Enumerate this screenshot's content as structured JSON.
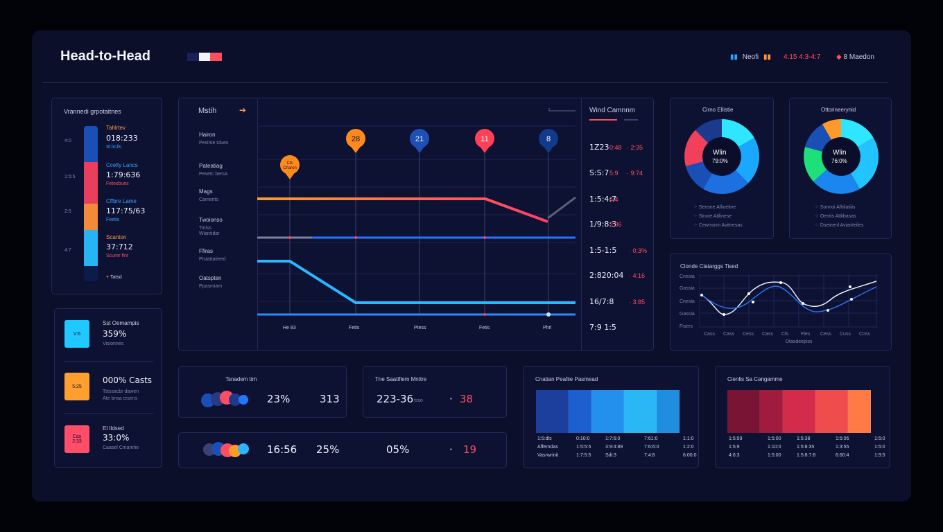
{
  "header": {
    "title": "Head-to-Head",
    "mid_label": "Neofi",
    "score": "4:15 4:3-4:7",
    "user": "8 Maedon"
  },
  "left_panel": {
    "title": "Vrannedi grpotaitnes",
    "axis_ticks": [
      "4:0",
      "1:5:5",
      "2:5",
      "4:7"
    ],
    "entries": [
      {
        "label": "Tahlrtev",
        "value": "018:233",
        "sub": "Sl:irclis"
      },
      {
        "label": "Ccelty Lancs",
        "value": "1:79:636",
        "sub": "Fetesbues"
      },
      {
        "label": "Cffbre Lame",
        "value": "117:75/63",
        "sub": "Feetis"
      },
      {
        "label": "Scanton",
        "value": "37:712",
        "sub": "Scurer fint"
      }
    ],
    "footer": "+ Tatsd"
  },
  "stats_panel": {
    "items": [
      {
        "tile": "V:6",
        "label": "Sst Oemampis",
        "value": "359%",
        "sub": "Visionnes",
        "color": "#1fc8ff"
      },
      {
        "tile": "5:25",
        "label": "000% Casts",
        "value": "",
        "sub": "Tstssacbr dawen\nAte bnsa crsens",
        "color": "#ffa02e"
      },
      {
        "tile": "Cas\n2:33",
        "label": "El Ildsed",
        "value": "33:0%",
        "sub": "Caasel Cmamhe",
        "color": "#ff4d6a"
      }
    ]
  },
  "match_panel": {
    "title": "Mstih",
    "rows": [
      {
        "label": "Hairon",
        "sub": "Pesinte tdues"
      },
      {
        "label": "Pateatiag",
        "sub": "Pesetc bersa"
      },
      {
        "label": "Mags",
        "sub": "Camerits"
      },
      {
        "label": "Twoionso",
        "sub": "Tiniss\nWiantidar"
      },
      {
        "label": "Ffiras",
        "sub": "Pistattatieed"
      },
      {
        "label": "Oatspten",
        "sub": "Ppasmiam"
      }
    ],
    "x_labels": [
      "He 83",
      "Fetis",
      "Ptess",
      "Fetis",
      "Phrl"
    ],
    "markers": [
      {
        "label": "Ctc\nCharon",
        "color": "#ff8a1c"
      },
      {
        "label": "28",
        "color": "#ff8a1c"
      },
      {
        "label": "21",
        "color": "#1e4fb5"
      },
      {
        "label": "11",
        "color": "#ff4057"
      },
      {
        "label": "8",
        "color": "#123a8c"
      }
    ]
  },
  "wind_panel": {
    "title": "Wind Camnnm",
    "rows": [
      {
        "a": "1Z23",
        "b": "0:48",
        "c": "· 2:35"
      },
      {
        "a": "S:S:7",
        "b": "5:9",
        "c": "· 9:74"
      },
      {
        "a": "1:5:4:7",
        "b": "4:4",
        "c": ""
      },
      {
        "a": "1/9:8:3",
        "b": "2:36",
        "c": ""
      },
      {
        "a": "1:5-1:5",
        "b": "· 0:3%",
        "c": ""
      },
      {
        "a": "2:820:04",
        "b": "· 4:16",
        "c": ""
      },
      {
        "a": "16/7:8",
        "b": "· 3:85",
        "c": ""
      },
      {
        "a": "7:9 1:5",
        "b": "",
        "c": ""
      }
    ]
  },
  "donut1": {
    "title": "Cirno Ellistie",
    "center": "Wlin",
    "center_value": "79:0%",
    "legend": [
      "Sensne Alliuetive",
      "Sinoie Atilinese",
      "Cewnsnm Avitnesas"
    ]
  },
  "donut2": {
    "title": "Ottorineerynid",
    "center": "Wlin",
    "center_value": "76:0%",
    "legend": [
      "Sonnoi Alhilatiiis",
      "Oentis Atliibasas",
      "Dseinenl Avianteiles"
    ]
  },
  "trend": {
    "title": "Clonde Clatarggs Tised",
    "y_labels": [
      "Cnesia",
      "Gassia",
      "Cnesia",
      "Gassia",
      "Fisers"
    ],
    "x_labels": [
      "Cass",
      "Cass",
      "Cess",
      "Cass",
      "Cls",
      "Fles",
      "Cess",
      "Cuss",
      "Coss"
    ],
    "x_caption": "Dtasdeepiss"
  },
  "bottom": {
    "c1": {
      "title": "Tsnadem tim",
      "v1": "23%",
      "v2": "313"
    },
    "c2": {
      "title": "Tne Saatiflem Mnttre",
      "v1": "223-36",
      "unit": "tsso",
      "v2": "38"
    },
    "c3": {
      "v1": "16:56",
      "v2": "25%",
      "v3": "05%",
      "v4": "19"
    }
  },
  "heat_blue": {
    "title": "Cnatian Peafiie Pasmead",
    "rows": [
      [
        "1:5:dls",
        "0:10:0",
        "1:7:6:0",
        "7:61:0",
        "1:1:0"
      ],
      [
        "Afferndas",
        "1:5:5:5",
        "3:9:4:89",
        "7:6:6:0",
        "1:2:0"
      ],
      [
        "Vasrwrinit",
        "1:7:5:5",
        "Sdi:3",
        "7:4:8",
        "6:00:0"
      ]
    ],
    "colors": [
      "#1c3f9e",
      "#1e5fcf",
      "#2490ee",
      "#2bb7f5",
      "#1f8de0"
    ]
  },
  "heat_red": {
    "title": "Cienlis Sa Cangamme",
    "rows": [
      [
        "1:5:99",
        "1:5:00",
        "1:5:38",
        "1:5:06",
        "1:5:0"
      ],
      [
        "1:5:9",
        "1:10:0",
        "1:5:8:35",
        "1:3:55",
        "1:5:0"
      ],
      [
        "4:6:3",
        "1:5:00",
        "1:5:8:7:8",
        "6:60:4",
        "1:9:5"
      ]
    ],
    "colors": [
      "#7a1434",
      "#a01b3e",
      "#d22c4a",
      "#ef4d4d",
      "#ff7a45"
    ]
  }
}
